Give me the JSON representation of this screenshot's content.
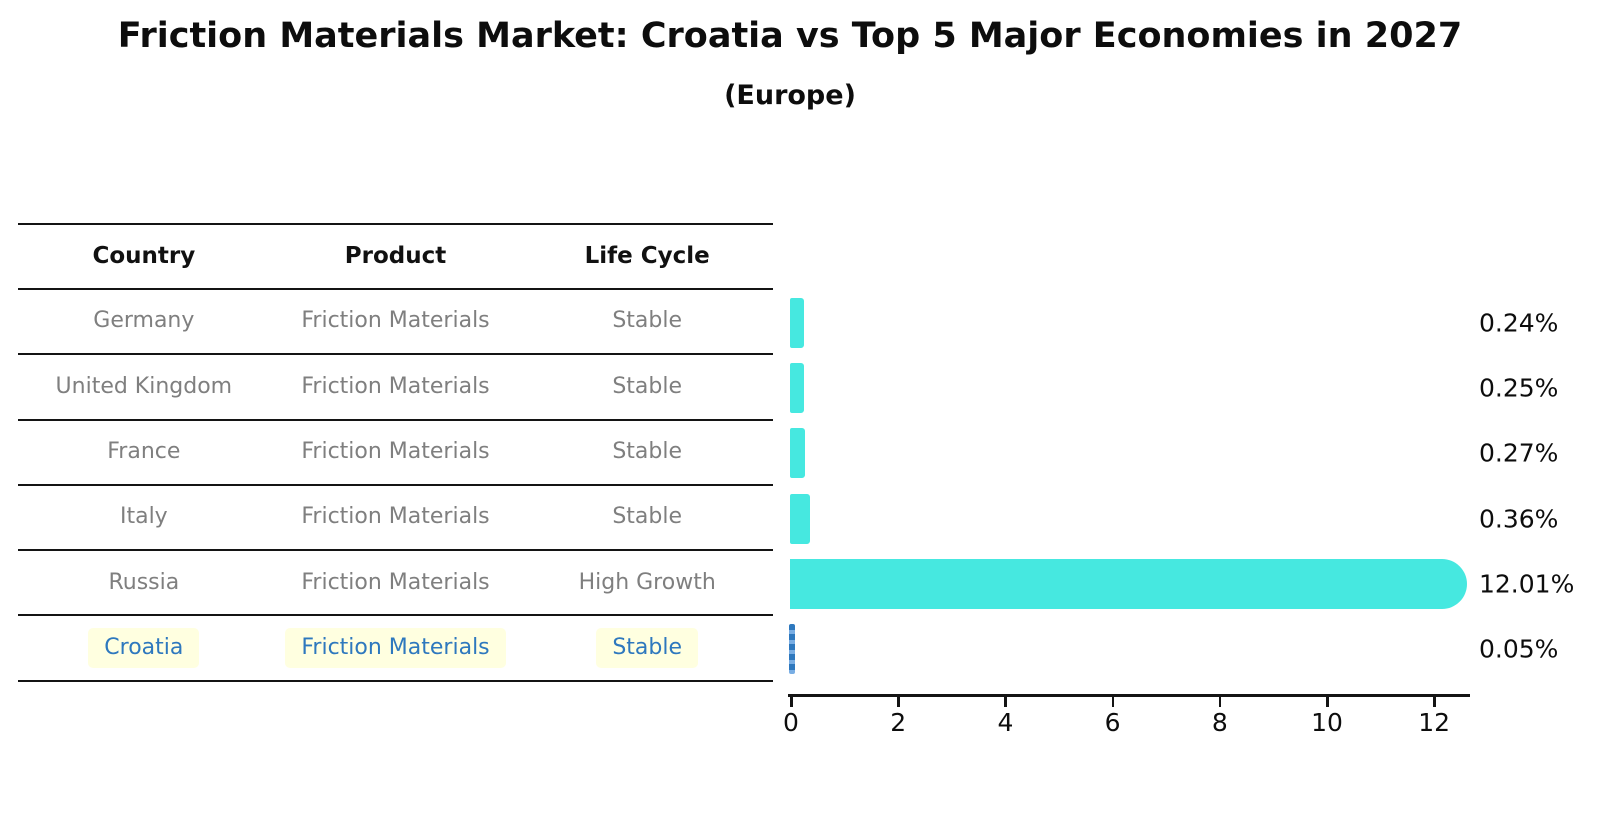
{
  "title": "Friction Materials Market: Croatia vs Top 5 Major Economies in 2027",
  "subtitle": "(Europe)",
  "table": {
    "headers": [
      "Country",
      "Product",
      "Life Cycle"
    ],
    "rows": [
      {
        "country": "Germany",
        "product": "Friction Materials",
        "life_cycle": "Stable",
        "highlight": false
      },
      {
        "country": "United Kingdom",
        "product": "Friction Materials",
        "life_cycle": "Stable",
        "highlight": false
      },
      {
        "country": "France",
        "product": "Friction Materials",
        "life_cycle": "Stable",
        "highlight": false
      },
      {
        "country": "Italy",
        "product": "Friction Materials",
        "life_cycle": "Stable",
        "highlight": false
      },
      {
        "country": "Russia",
        "product": "Friction Materials",
        "life_cycle": "High Growth",
        "highlight": false
      },
      {
        "country": "Croatia",
        "product": "Friction Materials",
        "life_cycle": "Stable",
        "highlight": true
      }
    ]
  },
  "chart_data": {
    "type": "bar",
    "orientation": "horizontal",
    "categories": [
      "Germany",
      "United Kingdom",
      "France",
      "Italy",
      "Russia",
      "Croatia"
    ],
    "values": [
      0.24,
      0.25,
      0.27,
      0.36,
      12.01,
      0.05
    ],
    "value_labels": [
      "0.24%",
      "0.25%",
      "0.27%",
      "0.36%",
      "12.01%",
      "0.05%"
    ],
    "x_ticks": [
      "0",
      "2",
      "4",
      "6",
      "8",
      "10",
      "12"
    ],
    "x_tick_values": [
      0,
      2,
      4,
      6,
      8,
      10,
      12
    ],
    "xlim": [
      0,
      12.7
    ],
    "grid": false,
    "legend": null,
    "bar_color": "#46E8E0",
    "highlight_marker_style": "dashed-vertical-line",
    "highlight_marker_color": "#2E78BE",
    "highlight_text_color": "#2E78BE",
    "highlight_bg_color": "#FFFFE0",
    "muted_text_color": "#7f7f7f"
  }
}
